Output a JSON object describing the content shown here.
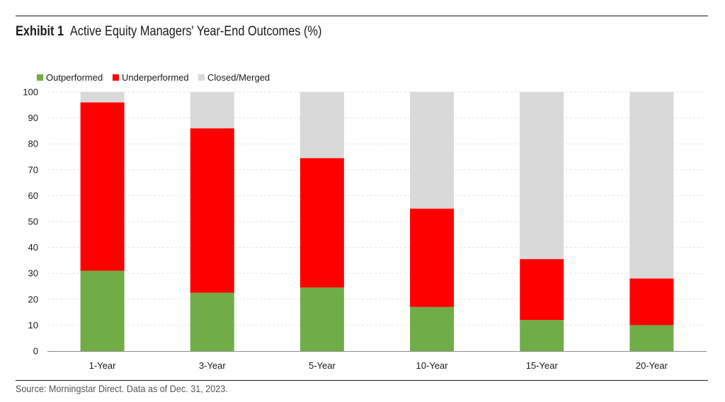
{
  "header": {
    "exhibit_label": "Exhibit 1",
    "title": "Active Equity Managers' Year-End Outcomes (%)"
  },
  "footer": {
    "source": "Source: Morningstar Direct. Data as of Dec. 31, 2023."
  },
  "chart_data": {
    "type": "bar",
    "stacked": true,
    "categories": [
      "1-Year",
      "3-Year",
      "5-Year",
      "10-Year",
      "15-Year",
      "20-Year"
    ],
    "series": [
      {
        "name": "Outperformed",
        "color": "#70AD47",
        "values": [
          31,
          22.5,
          24.5,
          17,
          12,
          10
        ]
      },
      {
        "name": "Underperformed",
        "color": "#FF0000",
        "values": [
          65,
          63.5,
          50,
          38,
          23.5,
          18
        ]
      },
      {
        "name": "Closed/Merged",
        "color": "#D9D9D9",
        "values": [
          4,
          14,
          25.5,
          45,
          64.5,
          72
        ]
      }
    ],
    "ylim": [
      0,
      100
    ],
    "yticks": [
      0,
      10,
      20,
      30,
      40,
      50,
      60,
      70,
      80,
      90,
      100
    ],
    "grid": true,
    "legend_position": "top-left"
  }
}
